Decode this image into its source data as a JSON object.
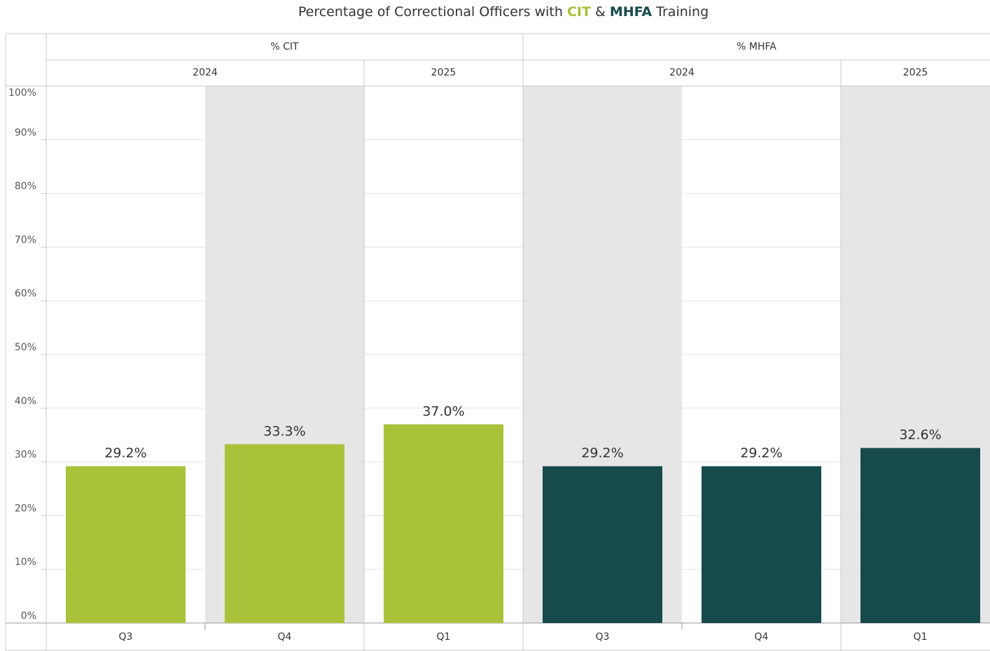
{
  "chart_data": {
    "type": "bar",
    "title_parts": [
      {
        "text": "Percentage of Correctional Officers with ",
        "color": "#333333",
        "bold": false
      },
      {
        "text": "CIT",
        "color": "#a8c23a",
        "bold": true
      },
      {
        "text": " & ",
        "color": "#333333",
        "bold": false
      },
      {
        "text": "MHFA",
        "color": "#174a4a",
        "bold": true
      },
      {
        "text": " Training",
        "color": "#333333",
        "bold": false
      }
    ],
    "panels": [
      {
        "name": "% CIT",
        "color": "#a8c23a",
        "groups": [
          {
            "year": "2024",
            "categories": [
              "Q3",
              "Q4"
            ],
            "values": [
              29.2,
              33.3
            ],
            "value_labels": [
              "29.2%",
              "33.3%"
            ]
          },
          {
            "year": "2025",
            "categories": [
              "Q1"
            ],
            "values": [
              37.0
            ],
            "value_labels": [
              "37.0%"
            ]
          }
        ]
      },
      {
        "name": "% MHFA",
        "color": "#174a4a",
        "groups": [
          {
            "year": "2024",
            "categories": [
              "Q3",
              "Q4"
            ],
            "values": [
              29.2,
              29.2
            ],
            "value_labels": [
              "29.2%",
              "29.2%"
            ]
          },
          {
            "year": "2025",
            "categories": [
              "Q1"
            ],
            "values": [
              32.6
            ],
            "value_labels": [
              "32.6%"
            ]
          }
        ]
      }
    ],
    "ylim": [
      0,
      100
    ],
    "yticks": [
      {
        "value": 0,
        "label": "0%"
      },
      {
        "value": 10,
        "label": "10%"
      },
      {
        "value": 20,
        "label": "20%"
      },
      {
        "value": 30,
        "label": "30%"
      },
      {
        "value": 40,
        "label": "40%"
      },
      {
        "value": 50,
        "label": "50%"
      },
      {
        "value": 60,
        "label": "60%"
      },
      {
        "value": 70,
        "label": "70%"
      },
      {
        "value": 80,
        "label": "80%"
      },
      {
        "value": 90,
        "label": "90%"
      },
      {
        "value": 100,
        "label": "100%"
      }
    ],
    "grid": true,
    "band_shading": "#e6e6e6"
  }
}
